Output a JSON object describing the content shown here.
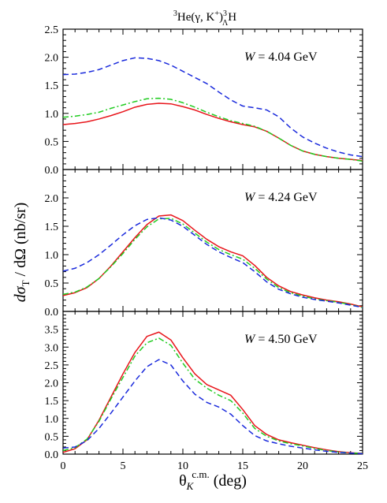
{
  "title": {
    "base": "He(γ, K",
    "sup_pre": "3",
    "kplus": "+",
    "close": ")",
    "sup_post": "3",
    "sub_post": "Λ",
    "tail": "H"
  },
  "ylabel": {
    "main": "dσ",
    "sub": "T",
    "rest": " / dΩ   (nb/sr)"
  },
  "xlabel": {
    "theta": "θ",
    "sub": "K",
    "sup": "c.m.",
    "rest": " (deg)"
  },
  "colors": {
    "red_solid": "#e8141a",
    "green_dashdot": "#22cc22",
    "blue_dashed": "#1a2adc"
  },
  "chart_data": [
    {
      "type": "line",
      "annotation": {
        "italic": "W",
        "rest": " = 4.04 GeV"
      },
      "xlim": [
        0,
        25
      ],
      "ylim": [
        0,
        2.5
      ],
      "yticks": [
        "0.0",
        "0.5",
        "1.0",
        "1.5",
        "2.0",
        "2.5"
      ],
      "xticks": [],
      "x": [
        0,
        1,
        2,
        3,
        4,
        5,
        6,
        7,
        8,
        9,
        10,
        11,
        12,
        13,
        14,
        15,
        16,
        17,
        18,
        19,
        20,
        21,
        22,
        23,
        24,
        25
      ],
      "series": [
        {
          "style": "red_solid",
          "values": [
            0.8,
            0.82,
            0.85,
            0.9,
            0.96,
            1.03,
            1.11,
            1.16,
            1.18,
            1.17,
            1.12,
            1.06,
            0.98,
            0.91,
            0.85,
            0.8,
            0.76,
            0.68,
            0.56,
            0.43,
            0.33,
            0.27,
            0.23,
            0.2,
            0.18,
            0.16
          ]
        },
        {
          "style": "green_dashdot",
          "values": [
            0.93,
            0.95,
            0.98,
            1.02,
            1.09,
            1.15,
            1.21,
            1.26,
            1.27,
            1.25,
            1.19,
            1.11,
            1.02,
            0.94,
            0.87,
            0.82,
            0.77,
            0.68,
            0.56,
            0.43,
            0.33,
            0.27,
            0.23,
            0.2,
            0.18,
            0.15
          ]
        },
        {
          "style": "blue_dashed",
          "values": [
            1.69,
            1.7,
            1.73,
            1.78,
            1.86,
            1.94,
            1.99,
            1.98,
            1.94,
            1.86,
            1.75,
            1.64,
            1.53,
            1.38,
            1.24,
            1.13,
            1.1,
            1.06,
            0.94,
            0.74,
            0.58,
            0.47,
            0.38,
            0.31,
            0.26,
            0.23
          ]
        }
      ]
    },
    {
      "type": "line",
      "annotation": {
        "italic": "W",
        "rest": " = 4.24 GeV"
      },
      "xlim": [
        0,
        25
      ],
      "ylim": [
        0,
        2.5
      ],
      "yticks": [
        "0.0",
        "0.5",
        "1.0",
        "1.5",
        "2.0",
        ""
      ],
      "xticks": [],
      "x": [
        0,
        1,
        2,
        3,
        4,
        5,
        6,
        7,
        8,
        9,
        10,
        11,
        12,
        13,
        14,
        15,
        16,
        17,
        18,
        19,
        20,
        21,
        22,
        23,
        24,
        25
      ],
      "series": [
        {
          "style": "red_solid",
          "values": [
            0.28,
            0.33,
            0.42,
            0.58,
            0.8,
            1.05,
            1.3,
            1.53,
            1.68,
            1.7,
            1.6,
            1.43,
            1.27,
            1.14,
            1.05,
            0.98,
            0.81,
            0.6,
            0.45,
            0.35,
            0.29,
            0.24,
            0.2,
            0.17,
            0.13,
            0.08
          ]
        },
        {
          "style": "green_dashdot",
          "values": [
            0.3,
            0.34,
            0.43,
            0.58,
            0.79,
            1.02,
            1.27,
            1.49,
            1.63,
            1.64,
            1.54,
            1.38,
            1.22,
            1.09,
            1.0,
            0.92,
            0.76,
            0.57,
            0.42,
            0.33,
            0.27,
            0.22,
            0.19,
            0.16,
            0.12,
            0.07
          ]
        },
        {
          "style": "blue_dashed",
          "values": [
            0.71,
            0.76,
            0.86,
            1.0,
            1.17,
            1.35,
            1.51,
            1.62,
            1.65,
            1.61,
            1.5,
            1.34,
            1.18,
            1.05,
            0.95,
            0.86,
            0.7,
            0.52,
            0.39,
            0.31,
            0.25,
            0.21,
            0.18,
            0.15,
            0.11,
            0.07
          ]
        }
      ]
    },
    {
      "type": "line",
      "annotation": {
        "italic": "W",
        "rest": " = 4.50 GeV"
      },
      "xlim": [
        0,
        25
      ],
      "ylim": [
        0,
        4.0
      ],
      "yticks": [
        "0.0",
        "0.5",
        "1.0",
        "1.5",
        "2.0",
        "2.5",
        "3.0",
        "3.5"
      ],
      "xticks": [
        "0",
        "5",
        "10",
        "15",
        "20",
        "25"
      ],
      "x": [
        0,
        1,
        2,
        3,
        4,
        5,
        6,
        7,
        8,
        9,
        10,
        11,
        12,
        13,
        14,
        15,
        16,
        17,
        18,
        19,
        20,
        21,
        22,
        23,
        24,
        25
      ],
      "series": [
        {
          "style": "red_solid",
          "values": [
            0.05,
            0.15,
            0.4,
            0.95,
            1.6,
            2.25,
            2.85,
            3.3,
            3.42,
            3.2,
            2.7,
            2.25,
            1.95,
            1.8,
            1.65,
            1.25,
            0.8,
            0.55,
            0.4,
            0.32,
            0.25,
            0.18,
            0.12,
            0.07,
            0.04,
            0.02
          ]
        },
        {
          "style": "green_dashdot",
          "values": [
            0.1,
            0.18,
            0.42,
            0.92,
            1.55,
            2.15,
            2.75,
            3.12,
            3.25,
            3.05,
            2.55,
            2.1,
            1.85,
            1.65,
            1.5,
            1.15,
            0.72,
            0.5,
            0.37,
            0.29,
            0.23,
            0.16,
            0.1,
            0.06,
            0.03,
            0.02
          ]
        },
        {
          "style": "blue_dashed",
          "values": [
            0.17,
            0.2,
            0.38,
            0.72,
            1.15,
            1.6,
            2.05,
            2.45,
            2.65,
            2.5,
            2.05,
            1.68,
            1.45,
            1.32,
            1.12,
            0.8,
            0.52,
            0.37,
            0.29,
            0.22,
            0.17,
            0.12,
            0.08,
            0.05,
            0.03,
            0.01
          ]
        }
      ]
    }
  ]
}
